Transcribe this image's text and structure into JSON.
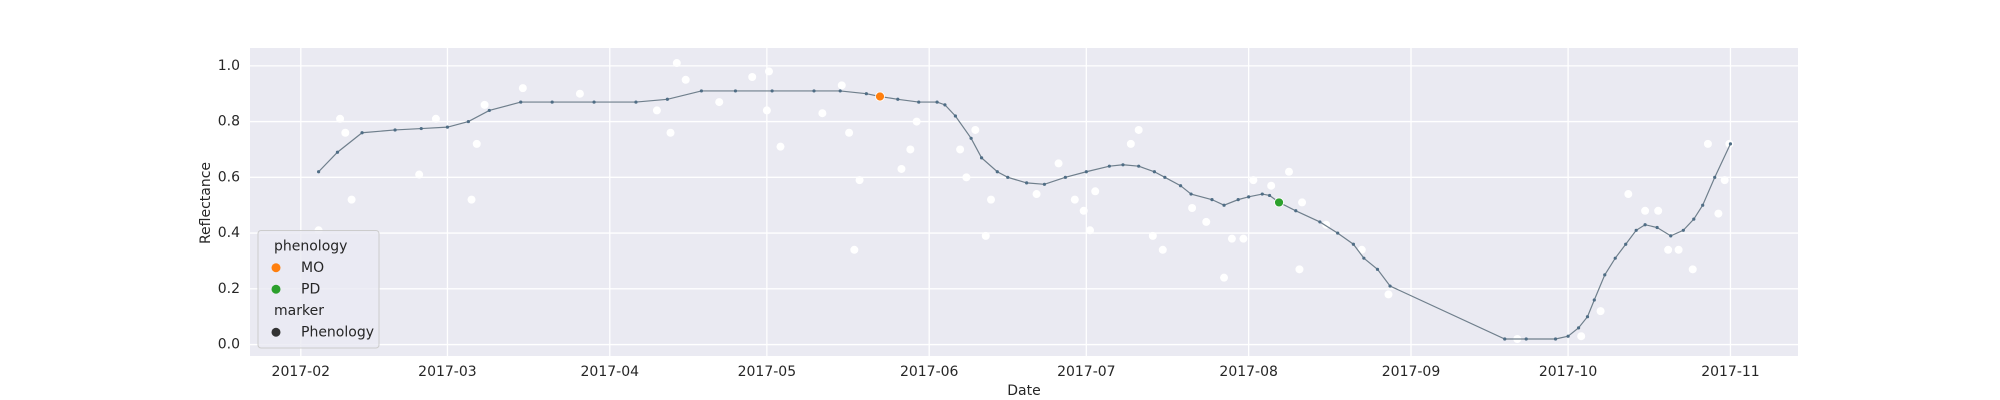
{
  "chart_data": {
    "type": "line",
    "x_label": "Date",
    "y_label": "Reflectance",
    "xlim": [
      22.3,
      317.9
    ],
    "ylim": [
      -0.041,
      1.064
    ],
    "xticks": [
      {
        "value": 32,
        "label": "2017-02"
      },
      {
        "value": 60,
        "label": "2017-03"
      },
      {
        "value": 91,
        "label": "2017-04"
      },
      {
        "value": 121,
        "label": "2017-05"
      },
      {
        "value": 152,
        "label": "2017-06"
      },
      {
        "value": 182,
        "label": "2017-07"
      },
      {
        "value": 213,
        "label": "2017-08"
      },
      {
        "value": 244,
        "label": "2017-09"
      },
      {
        "value": 274,
        "label": "2017-10"
      },
      {
        "value": 305,
        "label": "2017-11"
      }
    ],
    "yticks": [
      {
        "value": 0,
        "label": "0.0"
      },
      {
        "value": 0.2,
        "label": "0.2"
      },
      {
        "value": 0.4,
        "label": "0.4"
      },
      {
        "value": 0.6,
        "label": "0.6"
      },
      {
        "value": 0.8,
        "label": "0.8"
      },
      {
        "value": 1,
        "label": "1.0"
      }
    ],
    "grid": true,
    "background": "#eaeaf2",
    "series": [
      {
        "type": "scatter",
        "color": "#ffffff",
        "x": [
          35.4,
          39.5,
          40.5,
          41.7,
          54.6,
          57.8,
          64.6,
          65.6,
          67.1,
          74.4,
          85.3,
          100,
          102.6,
          103.8,
          105.5,
          111.9,
          118.2,
          121.4,
          121,
          123.6,
          131.6,
          135.3,
          136.7,
          137.7,
          138.7,
          146.7,
          148.4,
          149.6,
          157.9,
          159.1,
          160.8,
          162.8,
          163.8,
          172.5,
          176.7,
          179.8,
          181.5,
          182.7,
          183.7,
          190.5,
          192,
          194.7,
          196.6,
          202.2,
          204.9,
          208.3,
          209.8,
          212,
          213.9,
          217.3,
          220.7,
          222.7,
          223.2,
          227.8,
          234.6,
          239.7,
          264.3,
          276.5,
          280.2,
          285.5,
          288.7,
          291.2,
          293.1,
          295.1,
          297.8,
          300.7,
          302.7,
          303.9,
          304.8
        ],
        "values": [
          0.41,
          0.81,
          0.76,
          0.52,
          0.61,
          0.81,
          0.52,
          0.72,
          0.86,
          0.92,
          0.9,
          0.84,
          0.76,
          1.01,
          0.95,
          0.87,
          0.96,
          0.98,
          0.84,
          0.71,
          0.83,
          0.93,
          0.76,
          0.34,
          0.59,
          0.63,
          0.7,
          0.8,
          0.7,
          0.6,
          0.77,
          0.39,
          0.52,
          0.54,
          0.65,
          0.52,
          0.48,
          0.41,
          0.55,
          0.72,
          0.77,
          0.39,
          0.34,
          0.49,
          0.44,
          0.24,
          0.38,
          0.38,
          0.59,
          0.57,
          0.62,
          0.27,
          0.51,
          0.43,
          0.34,
          0.18,
          0.02,
          0.03,
          0.12,
          0.54,
          0.48,
          0.48,
          0.34,
          0.34,
          0.27,
          0.72,
          0.47,
          0.59,
          0.72
        ]
      },
      {
        "type": "line",
        "color": "#4f6d85",
        "x": [
          35.4,
          39,
          43.7,
          50,
          55,
          60,
          64,
          68,
          74,
          80,
          88,
          96,
          102,
          108.5,
          115,
          122,
          130,
          135,
          140,
          142.6,
          146,
          150,
          153.5,
          155,
          157,
          160,
          162,
          165,
          167,
          170.6,
          174,
          178,
          182,
          186.4,
          189,
          192,
          195,
          197,
          200,
          202,
          206,
          208.3,
          211,
          213,
          215.6,
          217,
          218.8,
          222,
          226.6,
          230,
          233,
          235,
          237.6,
          240,
          261.9,
          266,
          271.6,
          274,
          276,
          277.7,
          279,
          281,
          283,
          285,
          287,
          288.7,
          291,
          293.6,
          296,
          298,
          299.7,
          302,
          305
        ],
        "values": [
          0.62,
          0.69,
          0.76,
          0.77,
          0.775,
          0.78,
          0.8,
          0.84,
          0.87,
          0.87,
          0.87,
          0.87,
          0.88,
          0.91,
          0.91,
          0.91,
          0.91,
          0.91,
          0.9,
          0.89,
          0.88,
          0.87,
          0.87,
          0.86,
          0.82,
          0.74,
          0.67,
          0.62,
          0.6,
          0.58,
          0.575,
          0.6,
          0.62,
          0.64,
          0.645,
          0.64,
          0.62,
          0.6,
          0.57,
          0.54,
          0.52,
          0.5,
          0.52,
          0.53,
          0.54,
          0.535,
          0.51,
          0.48,
          0.44,
          0.4,
          0.36,
          0.31,
          0.27,
          0.21,
          0.02,
          0.02,
          0.02,
          0.03,
          0.06,
          0.1,
          0.16,
          0.25,
          0.31,
          0.36,
          0.41,
          0.43,
          0.42,
          0.39,
          0.41,
          0.45,
          0.5,
          0.6,
          0.72
        ]
      },
      {
        "type": "scatter",
        "name": "MO",
        "color": "#ff7f0e",
        "x": [
          142.6
        ],
        "values": [
          0.89
        ]
      },
      {
        "type": "scatter",
        "name": "PD",
        "color": "#2ca02c",
        "x": [
          218.8
        ],
        "values": [
          0.51
        ]
      }
    ],
    "legend": {
      "corner": "lower left",
      "hue_title": "phenology",
      "marker_title": "marker",
      "marker_label": "Phenology",
      "marker_color": "#333333"
    }
  }
}
